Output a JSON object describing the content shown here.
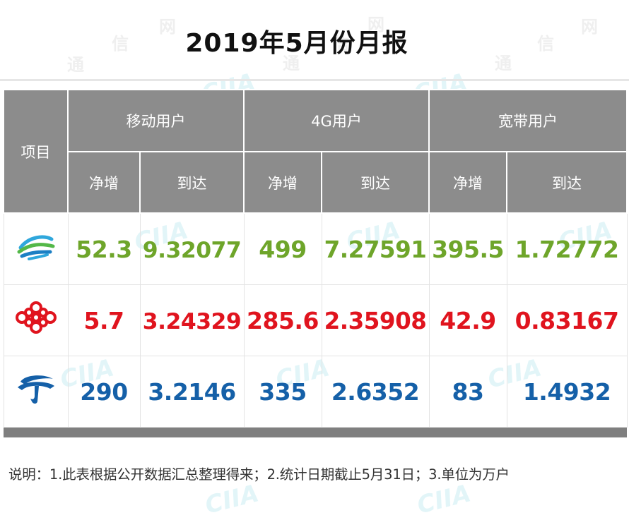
{
  "title": "2019年5月份月报",
  "watermark": {
    "chars": [
      "通",
      "信",
      "网"
    ],
    "logo": "CIIA"
  },
  "table": {
    "item_header": "项目",
    "groups": [
      "移动用户",
      "4G用户",
      "宽带用户"
    ],
    "sub_headers": [
      "净增",
      "到达",
      "净增",
      "到达",
      "净增",
      "到达"
    ],
    "rows": [
      {
        "operator_icon": "china-mobile-logo-icon",
        "color": "#6ea52a",
        "values": [
          "52.3",
          "9.32077",
          "499",
          "7.27591",
          "395.5",
          "1.72772"
        ]
      },
      {
        "operator_icon": "china-unicom-logo-icon",
        "color": "#e0141e",
        "values": [
          "5.7",
          "3.24329",
          "285.6",
          "2.35908",
          "42.9",
          "0.83167"
        ]
      },
      {
        "operator_icon": "china-telecom-logo-icon",
        "color": "#1560a8",
        "values": [
          "290",
          "3.2146",
          "335",
          "2.6352",
          "83",
          "1.4932"
        ]
      }
    ]
  },
  "note": "说明：1.此表根据公开数据汇总整理得来；2.统计日期截止5月31日；3.单位为万户"
}
